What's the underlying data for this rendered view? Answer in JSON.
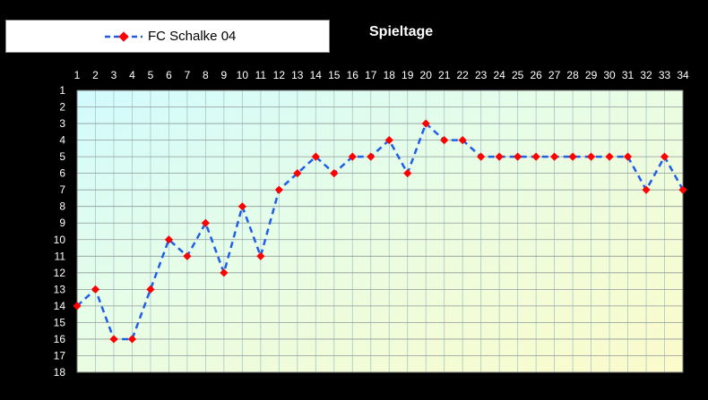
{
  "chart_data": {
    "type": "line",
    "title": "Spieltage",
    "xlabel": "",
    "ylabel": "",
    "x": [
      1,
      2,
      3,
      4,
      5,
      6,
      7,
      8,
      9,
      10,
      11,
      12,
      13,
      14,
      15,
      16,
      17,
      18,
      19,
      20,
      21,
      22,
      23,
      24,
      25,
      26,
      27,
      28,
      29,
      30,
      31,
      32,
      33,
      34
    ],
    "series": [
      {
        "name": "FC Schalke 04",
        "values": [
          14,
          13,
          16,
          16,
          13,
          10,
          11,
          9,
          12,
          8,
          11,
          7,
          6,
          5,
          6,
          5,
          5,
          4,
          6,
          3,
          4,
          4,
          5,
          5,
          5,
          5,
          5,
          5,
          5,
          5,
          5,
          7,
          5,
          7
        ],
        "color": "#1e5ee8",
        "marker_color": "#ff0000"
      }
    ],
    "ylim": [
      1,
      18
    ],
    "y_inverted": true,
    "xticks_position": "top",
    "grid": true,
    "legend_position": "top-left",
    "background_gradient": [
      "#fdfccf",
      "#ccfcfe"
    ]
  }
}
